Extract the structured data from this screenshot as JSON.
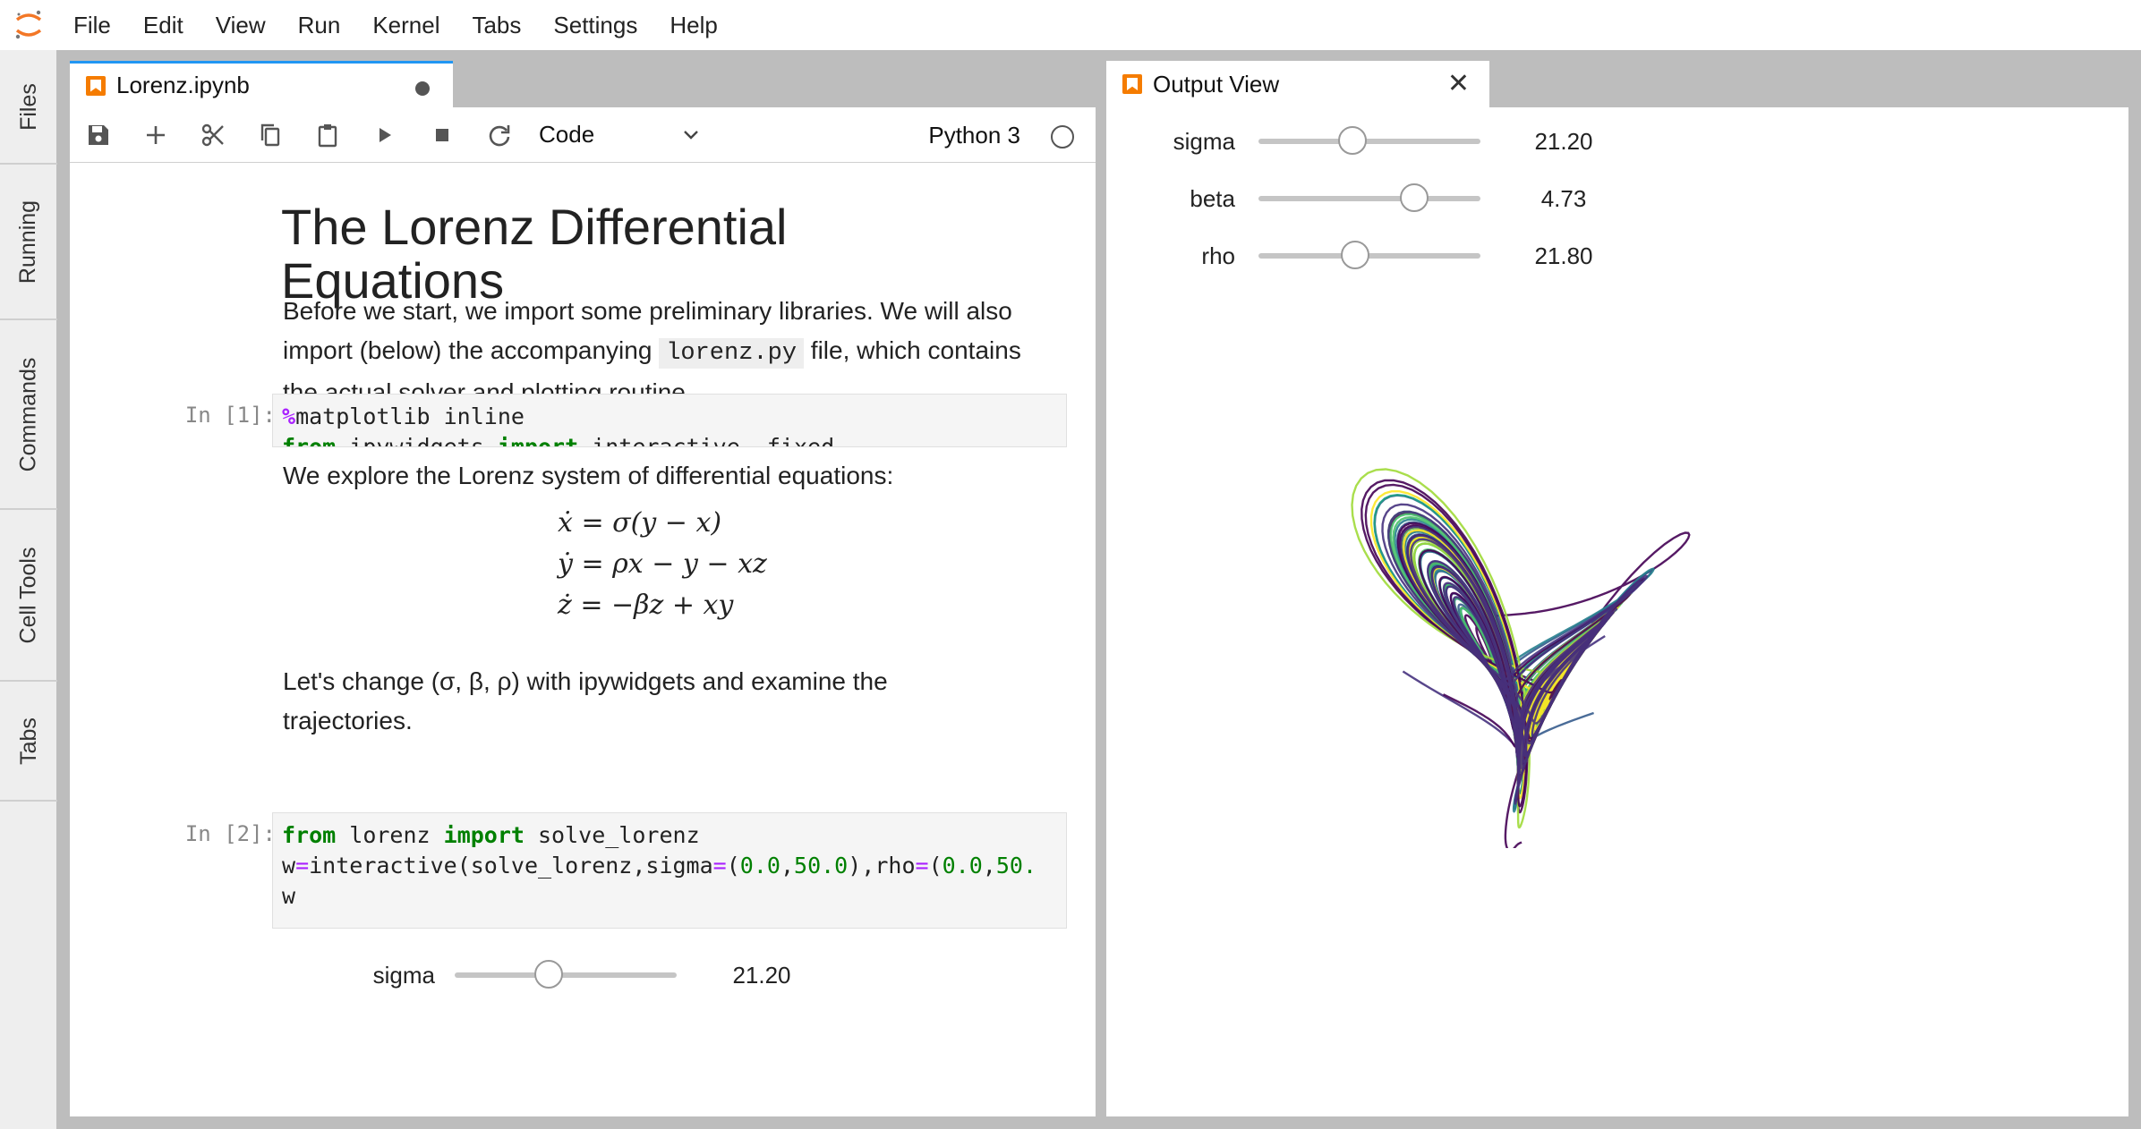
{
  "menubar": {
    "items": [
      "File",
      "Edit",
      "View",
      "Run",
      "Kernel",
      "Tabs",
      "Settings",
      "Help"
    ]
  },
  "sidebar": {
    "tabs": [
      "Files",
      "Running",
      "Commands",
      "Cell Tools",
      "Tabs"
    ]
  },
  "notebook": {
    "tab_title": "Lorenz.ipynb",
    "cell_type": "Code",
    "kernel_name": "Python 3",
    "title": "The Lorenz Differential Equations",
    "intro_before": "Before we start, we import some preliminary libraries. We will also import (below) the accompanying ",
    "intro_code": "lorenz.py",
    "intro_after": " file, which contains the actual solver and plotting routine.",
    "prompt1": "In [1]:",
    "code1_l1_magic": "%",
    "code1_l1_rest": "matplotlib inline",
    "code1_l2_kw1": "from",
    "code1_l2_mod": " ipywidgets ",
    "code1_l2_kw2": "import",
    "code1_l2_rest": " interactive, fixed",
    "explore_text": "We explore the Lorenz system of differential equations:",
    "eq1": "ẋ = σ(y − x)",
    "eq2": "ẏ = ρx − y − xz",
    "eq3": "ż = −βz + xy",
    "change_text": "Let's change (σ, β, ρ) with ipywidgets and examine the trajectories.",
    "prompt2": "In [2]:",
    "code2_l1_kw1": "from",
    "code2_l1_mod": " lorenz ",
    "code2_l1_kw2": "import",
    "code2_l1_rest": " solve_lorenz",
    "code2_l2_a": "w",
    "code2_l2_b": "=",
    "code2_l2_c": "interactive(solve_lorenz,sigma",
    "code2_l2_d": "=",
    "code2_l2_e": "(",
    "code2_l2_f": "0.0",
    "code2_l2_g": ",",
    "code2_l2_h": "50.0",
    "code2_l2_i": "),rho",
    "code2_l2_j": "=",
    "code2_l2_k": "(",
    "code2_l2_l": "0.0",
    "code2_l2_m": ",",
    "code2_l2_n": "50.",
    "code2_l3": "w",
    "slider_sigma_label": "sigma",
    "slider_sigma_value": "21.20",
    "slider_sigma_fraction": 0.424
  },
  "output_view": {
    "tab_title": "Output View",
    "sliders": [
      {
        "label": "sigma",
        "value": "21.20",
        "fraction": 0.424
      },
      {
        "label": "beta",
        "value": "4.73",
        "fraction": 0.7
      },
      {
        "label": "rho",
        "value": "21.80",
        "fraction": 0.436
      }
    ]
  },
  "colors": {
    "accent": "#2196f3",
    "notebook_icon": "#f57c00",
    "keyword": "#008000",
    "operator": "#aa22ff"
  }
}
